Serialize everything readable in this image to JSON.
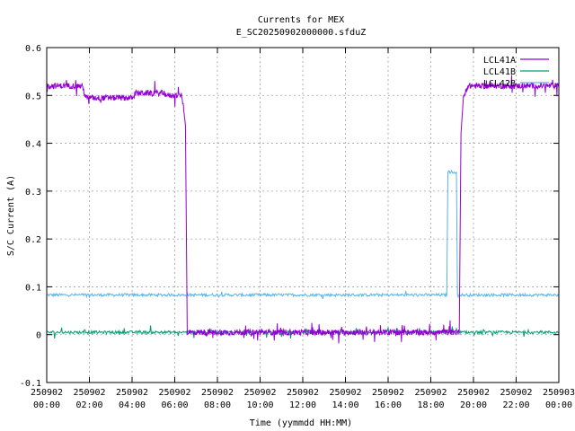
{
  "chart_data": {
    "type": "line",
    "title": "Currents for MEX",
    "subtitle": "E_SC20250902000000.sfduZ",
    "xlabel": "Time (yymmdd HH:MM)",
    "ylabel": "S/C Current (A)",
    "xlim": [
      "250902 00:00",
      "250903 00:00"
    ],
    "ylim": [
      -0.1,
      0.6
    ],
    "x_ticks": [
      {
        "date": "250902",
        "time": "00:00"
      },
      {
        "date": "250902",
        "time": "02:00"
      },
      {
        "date": "250902",
        "time": "04:00"
      },
      {
        "date": "250902",
        "time": "06:00"
      },
      {
        "date": "250902",
        "time": "08:00"
      },
      {
        "date": "250902",
        "time": "10:00"
      },
      {
        "date": "250902",
        "time": "12:00"
      },
      {
        "date": "250902",
        "time": "14:00"
      },
      {
        "date": "250902",
        "time": "16:00"
      },
      {
        "date": "250902",
        "time": "18:00"
      },
      {
        "date": "250902",
        "time": "20:00"
      },
      {
        "date": "250902",
        "time": "22:00"
      },
      {
        "date": "250903",
        "time": "00:00"
      }
    ],
    "y_ticks": [
      "-0.1",
      "0",
      "0.1",
      "0.2",
      "0.3",
      "0.4",
      "0.5",
      "0.6"
    ],
    "grid": true,
    "legend_position": "top-right",
    "series": [
      {
        "name": "LCL41A",
        "color": "#9400d3",
        "points": [
          [
            "250902 00:00",
            0.52
          ],
          [
            "250902 01:40",
            0.52
          ],
          [
            "250902 01:50",
            0.495
          ],
          [
            "250902 04:00",
            0.495
          ],
          [
            "250902 04:10",
            0.505
          ],
          [
            "250902 05:30",
            0.505
          ],
          [
            "250902 05:40",
            0.5
          ],
          [
            "250902 06:20",
            0.5
          ],
          [
            "250902 06:25",
            0.47
          ],
          [
            "250902 06:30",
            0.44
          ],
          [
            "250902 06:35",
            0.005
          ],
          [
            "250902 19:20",
            0.005
          ],
          [
            "250902 19:25",
            0.42
          ],
          [
            "250902 19:32",
            0.5
          ],
          [
            "250902 19:45",
            0.52
          ],
          [
            "250903 00:00",
            0.52
          ]
        ]
      },
      {
        "name": "LCL41B",
        "color": "#009e73",
        "points": [
          [
            "250902 00:00",
            0.005
          ],
          [
            "250903 00:00",
            0.005
          ]
        ]
      },
      {
        "name": "LCL42B",
        "color": "#56b4e9",
        "points": [
          [
            "250902 00:00",
            0.083
          ],
          [
            "250902 18:45",
            0.083
          ],
          [
            "250902 18:48",
            0.34
          ],
          [
            "250902 19:12",
            0.34
          ],
          [
            "250902 19:15",
            0.083
          ],
          [
            "250903 00:00",
            0.083
          ]
        ]
      }
    ]
  }
}
